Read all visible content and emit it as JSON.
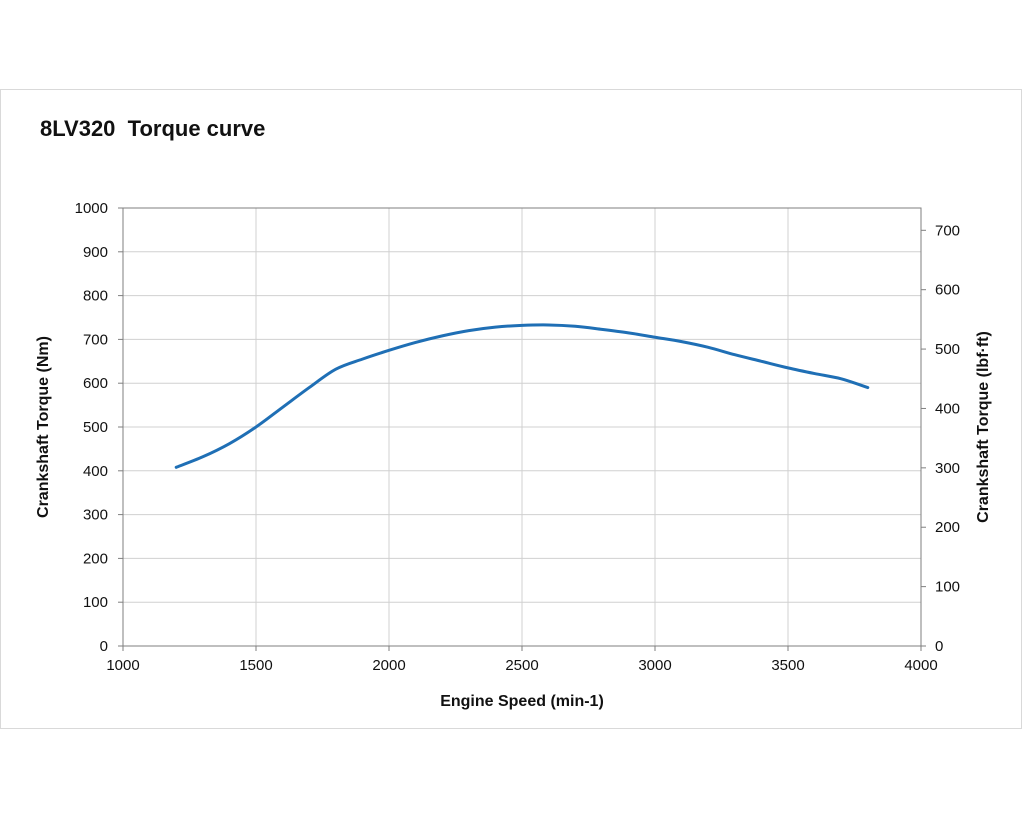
{
  "chart_data": {
    "type": "line",
    "title": "8LV320  Torque curve",
    "xlabel": "Engine Speed (min-1)",
    "ylabel": "Crankshaft Torque (Nm)",
    "y2label": "Crankshaft Torque (lbf·ft)",
    "xlim": [
      1000,
      4000
    ],
    "ylim": [
      0,
      1000
    ],
    "y2lim": [
      0,
      737.56
    ],
    "xticks": [
      "1000",
      "1500",
      "2000",
      "2500",
      "3000",
      "3500",
      "4000"
    ],
    "yticks": [
      "0",
      "100",
      "200",
      "300",
      "400",
      "500",
      "600",
      "700",
      "800",
      "900",
      "1000"
    ],
    "y2ticks": [
      "0",
      "100",
      "200",
      "300",
      "400",
      "500",
      "600",
      "700"
    ],
    "grid": true,
    "colors": {
      "series": "#1f6fb5",
      "grid": "#d0d0d0",
      "axis": "#7f7f7f"
    },
    "series": [
      {
        "x": [
          1200,
          1300,
          1400,
          1500,
          1600,
          1700,
          1800,
          1900,
          2000,
          2100,
          2200,
          2300,
          2400,
          2500,
          2600,
          2700,
          2800,
          2900,
          3000,
          3100,
          3200,
          3300,
          3400,
          3500,
          3600,
          3700,
          3800
        ],
        "y": [
          408,
          432,
          462,
          500,
          545,
          590,
          632,
          655,
          675,
          693,
          708,
          720,
          728,
          732,
          733,
          730,
          723,
          715,
          705,
          695,
          682,
          665,
          650,
          635,
          622,
          610,
          590
        ]
      }
    ]
  }
}
